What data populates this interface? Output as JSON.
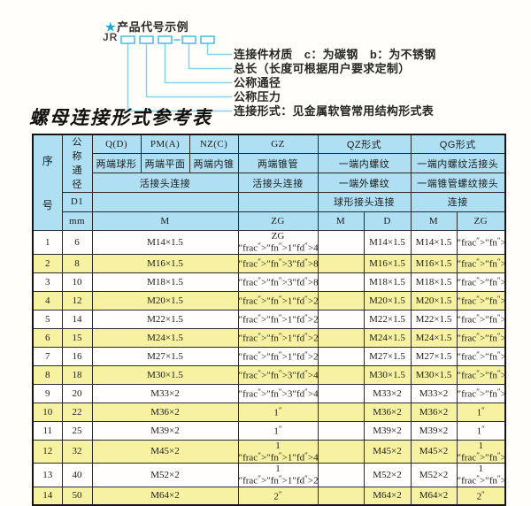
{
  "product_code": {
    "star": "★",
    "heading": "产品代号示例",
    "code_prefix": "JR",
    "labels": [
      "连接件材质　c：为碳钢　b：为不锈钢",
      "总长（长度可根据用户要求定制）",
      "公称通径",
      "公称压力",
      "连接形式：见金属软管常用结构形式表"
    ]
  },
  "table_title": "螺母连接形式参考表",
  "table": {
    "header": {
      "seq_no": "序号",
      "nominal_diameter": "公称通径",
      "d1": "D1",
      "unit_mm": "mm",
      "q": "Q(D)",
      "q_desc": "两端球形",
      "pm": "PM(A)",
      "pm_desc": "两端平面",
      "nz": "NZ(C)",
      "nz_desc": "两端内锥",
      "gz": "GZ",
      "gz_desc": "两端锥管",
      "union_connection": "活接头连接",
      "gz_connection": "活接头连接",
      "qz": "QZ形式",
      "qz_desc1": "一端内螺纹",
      "qz_desc2": "一端外螺纹",
      "qz_connection": "球形接头连接",
      "qg": "QG形式",
      "qg_desc1": "一端内螺纹活接头",
      "qg_desc2": "一端锥管螺纹接头",
      "qg_connection": "连接",
      "col_m": "M",
      "col_zg": "ZG",
      "col_qz_m": "M",
      "col_qz_d": "D",
      "col_qg_m": "M",
      "col_qg_zg": "ZG"
    },
    "rows": [
      [
        "1",
        "6",
        "M14×1.5",
        "ZG 1/4\"",
        "",
        "M14×1.5",
        "M14×1.5",
        "1/4\""
      ],
      [
        "2",
        "8",
        "M16×1.5",
        "3/8\"",
        "",
        "M16×1.5",
        "M16×1.5",
        "3/8\""
      ],
      [
        "3",
        "10",
        "M18×1.5",
        "3/8\"",
        "",
        "M18×1.5",
        "M18×1.5",
        "3/8\""
      ],
      [
        "4",
        "12",
        "M20×1.5",
        "1/2\"",
        "",
        "M20×1.5",
        "M20×1.5",
        "1/2\""
      ],
      [
        "5",
        "14",
        "M22×1.5",
        "1/2\"",
        "",
        "M22×1.5",
        "M22×1.5",
        "1/2\""
      ],
      [
        "6",
        "15",
        "M24×1.5",
        "1/2\"",
        "",
        "M24×1.5",
        "M24×1.5",
        "1/2\""
      ],
      [
        "7",
        "16",
        "M27×1.5",
        "1/2\"",
        "",
        "M27×1.5",
        "M27×1.5",
        "1/2\""
      ],
      [
        "8",
        "18",
        "M30×1.5",
        "3/4\"",
        "",
        "M30×1.5",
        "M30×1.5",
        "3/4\""
      ],
      [
        "9",
        "20",
        "M33×2",
        "3/4\"",
        "",
        "M33×2",
        "M33×2",
        "3/4\""
      ],
      [
        "10",
        "22",
        "M36×2",
        "1\"",
        "",
        "M36×2",
        "M36×2",
        "1\""
      ],
      [
        "11",
        "25",
        "M39×2",
        "1\"",
        "",
        "M39×2",
        "M39×2",
        "1\""
      ],
      [
        "12",
        "32",
        "M45×2",
        "1 1/4\"",
        "",
        "M45×2",
        "M45×2",
        "1 1/4\""
      ],
      [
        "13",
        "40",
        "M52×2",
        "1 1/2\"",
        "",
        "M52×2",
        "M52×2",
        "1 1/2\""
      ],
      [
        "14",
        "50",
        "M64×2",
        "2\"",
        "",
        "M64×2",
        "M64×2",
        "2\""
      ]
    ]
  },
  "colors": {
    "header_blue": "#aedff2",
    "row_yellow": "#f7f2a2",
    "accent_cyan": "#29b6e0"
  }
}
